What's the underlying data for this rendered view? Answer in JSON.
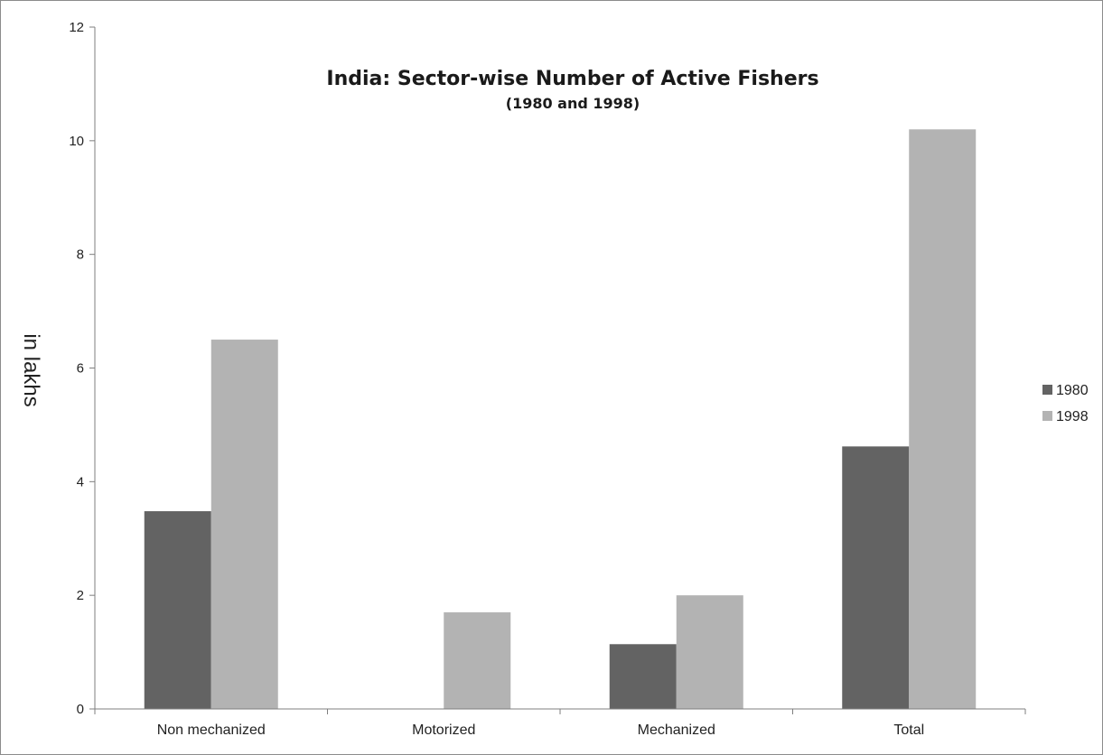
{
  "chart_data": {
    "type": "bar",
    "title": "India: Sector-wise Number of Active Fishers",
    "subtitle": "(1980 and 1998)",
    "xlabel": "",
    "ylabel": "in lakhs",
    "ylim": [
      0,
      12
    ],
    "yticks": [
      "0",
      "2",
      "4",
      "6",
      "8",
      "10",
      "12"
    ],
    "grid": false,
    "legend_position": "right",
    "categories": [
      "Non mechanized",
      "Motorized",
      "Mechanized",
      "Total"
    ],
    "series": [
      {
        "name": "1980",
        "color": "#636363",
        "values": [
          3.48,
          0,
          1.14,
          4.62
        ]
      },
      {
        "name": "1998",
        "color": "#b3b3b3",
        "values": [
          6.5,
          1.7,
          2.0,
          10.2
        ]
      }
    ]
  }
}
